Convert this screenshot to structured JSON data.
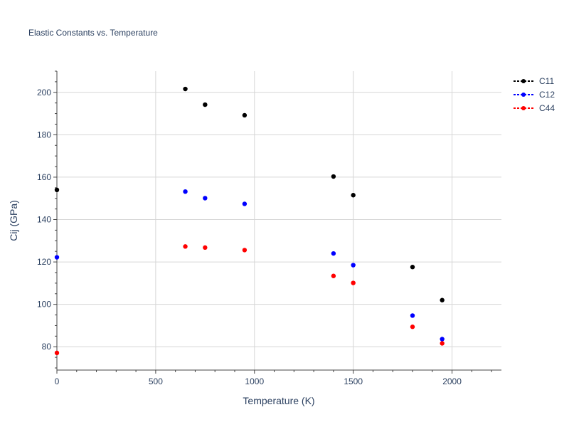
{
  "chart_data": {
    "type": "scatter",
    "title": "Elastic Constants vs. Temperature",
    "xlabel": "Temperature (K)",
    "ylabel": "Cij (GPa)",
    "xlim": [
      0,
      2250
    ],
    "ylim": [
      69,
      210
    ],
    "x_ticks": [
      0,
      500,
      1000,
      1500,
      2000
    ],
    "x_tick_labels": [
      "0",
      "500",
      "1000",
      "1500",
      "2000"
    ],
    "y_ticks": [
      80,
      100,
      120,
      140,
      160,
      180,
      200
    ],
    "y_tick_labels": [
      "80",
      "100",
      "120",
      "140",
      "160",
      "180",
      "200"
    ],
    "grid": true,
    "legend_position": "top-right",
    "series": [
      {
        "name": "C11",
        "color": "#000000",
        "x": [
          0,
          650,
          750,
          950,
          1400,
          1500,
          1800,
          1950
        ],
        "y": [
          154,
          201.6,
          194.2,
          189.2,
          160.3,
          151.5,
          117.6,
          102
        ]
      },
      {
        "name": "C12",
        "color": "#0000ff",
        "x": [
          0,
          650,
          750,
          950,
          1400,
          1500,
          1800,
          1950
        ],
        "y": [
          122.2,
          153.2,
          150.1,
          147.4,
          124,
          118.5,
          94.7,
          83.6
        ]
      },
      {
        "name": "C44",
        "color": "#ff0000",
        "x": [
          0,
          650,
          750,
          950,
          1400,
          1500,
          1800,
          1950
        ],
        "y": [
          77.1,
          127.3,
          126.8,
          125.6,
          113.4,
          110.1,
          89.4,
          81.6
        ]
      }
    ]
  }
}
